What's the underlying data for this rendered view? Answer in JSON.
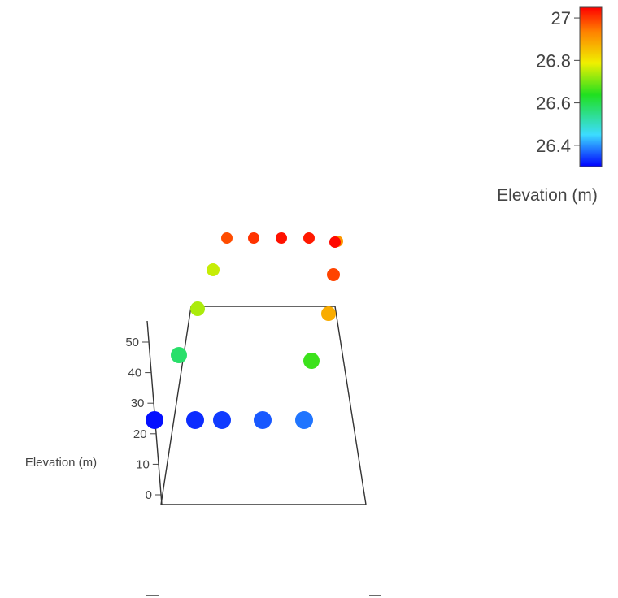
{
  "chart_data": {
    "type": "scatter",
    "projection": "3d",
    "title": "",
    "zlabel": "Elevation (m)",
    "zticks": [
      0,
      10,
      20,
      30,
      40,
      50
    ],
    "zlim": [
      0,
      57
    ],
    "colorbar": {
      "title": "Elevation (m)",
      "ticks": [
        "26.4",
        "26.6",
        "26.8",
        "27"
      ],
      "range": [
        26.3,
        27.05
      ],
      "colorscale": [
        "#0000ff",
        "#3cdcff",
        "#20e020",
        "#f0f000",
        "#ff7f00",
        "#ff0000"
      ]
    },
    "points": [
      {
        "id": "p1",
        "elevation": 26.31
      },
      {
        "id": "p2",
        "elevation": 26.33
      },
      {
        "id": "p3",
        "elevation": 26.34
      },
      {
        "id": "p4",
        "elevation": 26.36
      },
      {
        "id": "p5",
        "elevation": 26.38
      },
      {
        "id": "p6",
        "elevation": 26.55
      },
      {
        "id": "p7",
        "elevation": 26.62
      },
      {
        "id": "p8",
        "elevation": 26.7
      },
      {
        "id": "p9",
        "elevation": 26.72
      },
      {
        "id": "p10",
        "elevation": 26.84
      },
      {
        "id": "p11",
        "elevation": 26.87
      },
      {
        "id": "p12",
        "elevation": 26.96
      },
      {
        "id": "p13",
        "elevation": 26.97
      },
      {
        "id": "p14",
        "elevation": 26.99
      },
      {
        "id": "p15",
        "elevation": 27.02
      },
      {
        "id": "p16",
        "elevation": 27.03
      },
      {
        "id": "p17",
        "elevation": 27.04
      }
    ]
  }
}
